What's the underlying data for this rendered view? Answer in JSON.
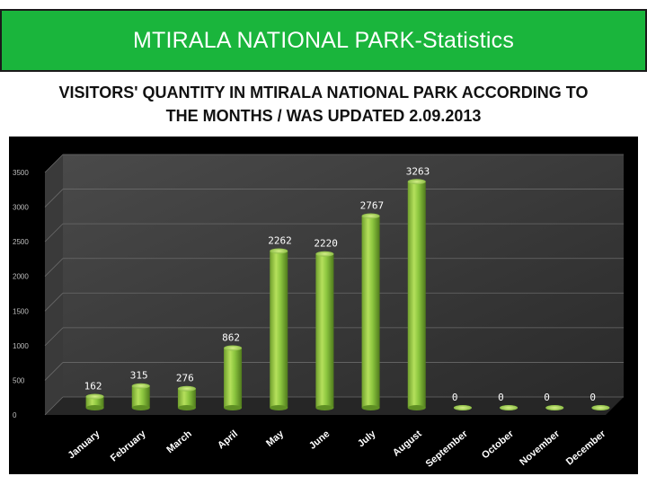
{
  "header": {
    "title": "MTIRALA NATIONAL PARK-Statistics"
  },
  "subtitle": {
    "line1": "VISITORS' QUANTITY IN MTIRALA NATIONAL PARK ACCORDING TO",
    "line2": "THE MONTHS / WAS UPDATED 2.09.2013"
  },
  "colors": {
    "banner": "#1ab53c",
    "bar": "#8cc63f",
    "background": "#000000"
  },
  "chart_data": {
    "type": "bar",
    "title": "",
    "xlabel": "",
    "ylabel": "",
    "categories": [
      "January",
      "February",
      "March",
      "April",
      "May",
      "June",
      "July",
      "August",
      "September",
      "October",
      "November",
      "December"
    ],
    "values": [
      162,
      315,
      276,
      862,
      2262,
      2220,
      2767,
      3263,
      0,
      0,
      0,
      0
    ],
    "value_labels": [
      "162",
      "315",
      "276",
      "862",
      "2262",
      "2220",
      "2767",
      "3263",
      "0",
      "0",
      "0",
      "0"
    ],
    "yticks": [
      "0",
      "500",
      "1000",
      "1500",
      "2000",
      "2500",
      "3000",
      "3500"
    ],
    "ylim": [
      0,
      3500
    ],
    "grid": true,
    "legend": "none"
  }
}
